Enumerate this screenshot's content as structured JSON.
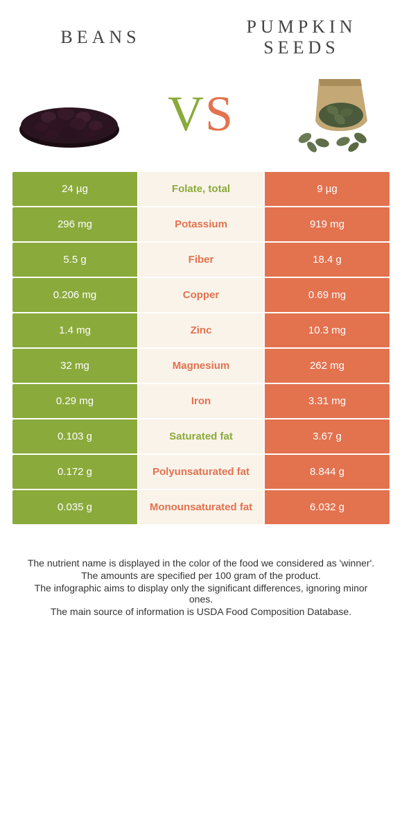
{
  "colors": {
    "green": "#8aaa3b",
    "orange": "#e3724f",
    "centerText": {
      "green": "#8aaa3b",
      "orange": "#e3724f"
    }
  },
  "header": {
    "left": "beans",
    "right": "pumpkin seeds"
  },
  "vs": {
    "v": "V",
    "s": "S"
  },
  "rows": [
    {
      "left": "24 µg",
      "label": "Folate, total",
      "right": "9 µg",
      "winner": "green"
    },
    {
      "left": "296 mg",
      "label": "Potassium",
      "right": "919 mg",
      "winner": "orange"
    },
    {
      "left": "5.5 g",
      "label": "Fiber",
      "right": "18.4 g",
      "winner": "orange"
    },
    {
      "left": "0.206 mg",
      "label": "Copper",
      "right": "0.69 mg",
      "winner": "orange"
    },
    {
      "left": "1.4 mg",
      "label": "Zinc",
      "right": "10.3 mg",
      "winner": "orange"
    },
    {
      "left": "32 mg",
      "label": "Magnesium",
      "right": "262 mg",
      "winner": "orange"
    },
    {
      "left": "0.29 mg",
      "label": "Iron",
      "right": "3.31 mg",
      "winner": "orange"
    },
    {
      "left": "0.103 g",
      "label": "Saturated fat",
      "right": "3.67 g",
      "winner": "green"
    },
    {
      "left": "0.172 g",
      "label": "Polyunsaturated fat",
      "right": "8.844 g",
      "winner": "orange"
    },
    {
      "left": "0.035 g",
      "label": "Monounsaturated fat",
      "right": "6.032 g",
      "winner": "orange"
    }
  ],
  "notes": [
    "The nutrient name is displayed in the color of the food we considered as 'winner'.",
    "The amounts are specified per 100 gram of the product.",
    "The infographic aims to display only the significant differences, ignoring minor ones.",
    "The main source of information is USDA Food Composition Database."
  ]
}
